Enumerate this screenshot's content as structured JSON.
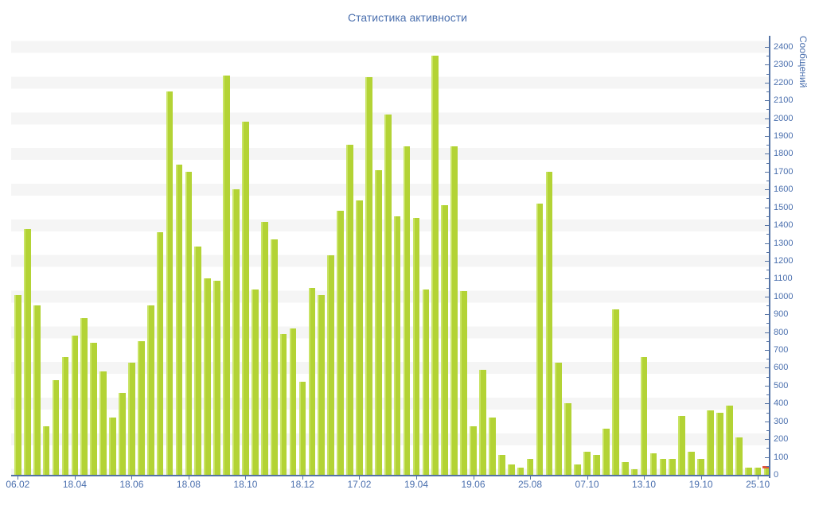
{
  "title": "Статистика активности",
  "chart_data": {
    "type": "bar",
    "title": "Статистика активности",
    "ylabel": "Сообщений",
    "xlabel": "",
    "ylim": [
      0,
      2400
    ],
    "ytick_major_step": 100,
    "ytick_minor_step": 50,
    "ytick_labels": [
      0,
      100,
      200,
      300,
      400,
      500,
      600,
      700,
      800,
      900,
      1000,
      1100,
      1200,
      1300,
      1400,
      1500,
      1600,
      1700,
      1800,
      1900,
      2000,
      2100,
      2200,
      2300,
      2400
    ],
    "grid": "alternating horizontal stripe bands",
    "legend_position": "none",
    "x_tick_labels": [
      "06.02",
      "18.04",
      "18.06",
      "18.08",
      "18.10",
      "18.12",
      "17.02",
      "19.04",
      "19.06",
      "25.08",
      "07.10",
      "13.10",
      "19.10",
      "25.10"
    ],
    "x_label_every_n_bars": 6,
    "values": [
      1010,
      1380,
      950,
      270,
      530,
      660,
      780,
      880,
      740,
      580,
      320,
      460,
      630,
      750,
      950,
      1360,
      2150,
      1740,
      1700,
      1280,
      1100,
      1090,
      2240,
      1600,
      1980,
      1040,
      1420,
      1320,
      790,
      820,
      520,
      1050,
      1010,
      1230,
      1480,
      1850,
      1540,
      2230,
      1710,
      2020,
      1450,
      1840,
      1440,
      1040,
      2350,
      1510,
      1840,
      1030,
      270,
      590,
      320,
      110,
      60,
      40,
      90,
      1520,
      1700,
      630,
      400,
      60,
      130,
      110,
      260,
      930,
      70,
      30,
      660,
      120,
      90,
      90,
      330,
      130,
      90,
      360,
      350,
      390,
      210,
      40,
      40,
      50
    ],
    "last_bar_marker": {
      "units": 15,
      "description": "red cap segment on top of final bar"
    }
  },
  "colors": {
    "bar": "#b3d335",
    "bar_highlight": "#c9e465",
    "marker_red": "#e2553b",
    "axis": "#5372a4",
    "tick_label": "#4a6fae",
    "title": "#4a6fae",
    "stripe": "#f5f5f5",
    "background": "#ffffff"
  }
}
